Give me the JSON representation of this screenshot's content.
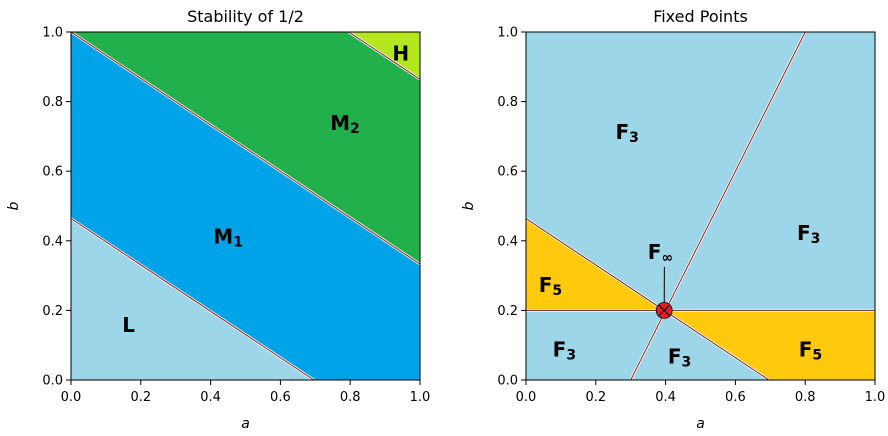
{
  "colors": {
    "L": "#9dd6e8",
    "M1": "#00a2e8",
    "M2": "#22b04c",
    "H": "#b5e61d",
    "F3": "#9dd6e8",
    "F5": "#ffc90e",
    "boundary": "#7a1f1f",
    "point": "#ed1c24"
  },
  "chart_data": [
    {
      "type": "heatmap",
      "title": "Stability of 1/2",
      "xlabel": "a",
      "ylabel": "b",
      "xlim": [
        0,
        1
      ],
      "ylim": [
        0,
        1
      ],
      "xticks": [
        "0.0",
        "0.2",
        "0.4",
        "0.6",
        "0.8",
        "1.0"
      ],
      "yticks": [
        "0.0",
        "0.2",
        "0.4",
        "0.6",
        "0.8",
        "1.0"
      ],
      "boundaries": [
        {
          "p1": [
            0,
            0.464
          ],
          "p2": [
            0.696,
            0
          ]
        },
        {
          "p1": [
            0,
            1.0
          ],
          "p2": [
            1.0,
            0.333
          ]
        },
        {
          "p1": [
            0.796,
            1.0
          ],
          "p2": [
            1.0,
            0.864
          ]
        }
      ],
      "regions": [
        {
          "name": "L",
          "base": "L",
          "sub": "",
          "color_key": "L",
          "polygon": [
            [
              0,
              0
            ],
            [
              0.696,
              0
            ],
            [
              0,
              0.464
            ]
          ],
          "label_at": [
            0.165,
            0.155
          ]
        },
        {
          "name": "M1",
          "base": "M",
          "sub": "1",
          "color_key": "M1",
          "polygon": [
            [
              0,
              0.464
            ],
            [
              0.696,
              0
            ],
            [
              1,
              0
            ],
            [
              1,
              0.333
            ],
            [
              0,
              1
            ]
          ],
          "label_at": [
            0.45,
            0.41
          ]
        },
        {
          "name": "M2",
          "base": "M",
          "sub": "2",
          "color_key": "M2",
          "polygon": [
            [
              0,
              1
            ],
            [
              1,
              0.333
            ],
            [
              1,
              0.864
            ],
            [
              0.796,
              1
            ]
          ],
          "label_at": [
            0.785,
            0.735
          ]
        },
        {
          "name": "H",
          "base": "H",
          "sub": "",
          "color_key": "H",
          "polygon": [
            [
              0.796,
              1
            ],
            [
              1,
              0.864
            ],
            [
              1,
              1
            ]
          ],
          "label_at": [
            0.945,
            0.935
          ]
        }
      ]
    },
    {
      "type": "heatmap",
      "title": "Fixed Points",
      "xlabel": "a",
      "ylabel": "b",
      "xlim": [
        0,
        1
      ],
      "ylim": [
        0,
        1
      ],
      "xticks": [
        "0.0",
        "0.2",
        "0.4",
        "0.6",
        "0.8",
        "1.0"
      ],
      "yticks": [
        "0.0",
        "0.2",
        "0.4",
        "0.6",
        "0.8",
        "1.0"
      ],
      "boundaries": [
        {
          "p1": [
            0,
            0.464
          ],
          "p2": [
            0.696,
            0
          ]
        },
        {
          "p1": [
            0,
            0.2
          ],
          "p2": [
            1.0,
            0.2
          ]
        },
        {
          "p1": [
            0.3,
            0
          ],
          "p2": [
            0.8,
            1.0
          ]
        }
      ],
      "regions": [
        {
          "name": "F3-a",
          "base": "F",
          "sub": "3",
          "color_key": "F3",
          "polygon": [
            [
              0,
              0
            ],
            [
              1,
              0
            ],
            [
              1,
              1
            ],
            [
              0,
              1
            ]
          ],
          "label_at": [
            0.29,
            0.71
          ]
        },
        {
          "name": "F3-b",
          "base": "F",
          "sub": "3",
          "color_key": "F3",
          "polygon": [],
          "label_at": [
            0.81,
            0.42
          ]
        },
        {
          "name": "F3-c",
          "base": "F",
          "sub": "3",
          "color_key": "F3",
          "polygon": [],
          "label_at": [
            0.11,
            0.085
          ]
        },
        {
          "name": "F3-d",
          "base": "F",
          "sub": "3",
          "color_key": "F3",
          "polygon": [],
          "label_at": [
            0.44,
            0.065
          ]
        },
        {
          "name": "F5-a",
          "base": "F",
          "sub": "5",
          "color_key": "F5",
          "polygon": [
            [
              0,
              0.464
            ],
            [
              0,
              0.2
            ],
            [
              0.396,
              0.2
            ]
          ],
          "label_at": [
            0.07,
            0.27
          ]
        },
        {
          "name": "F5-b",
          "base": "F",
          "sub": "5",
          "color_key": "F5",
          "polygon": [
            [
              0.396,
              0.2
            ],
            [
              1,
              0.2
            ],
            [
              1,
              0
            ],
            [
              0.696,
              0
            ]
          ],
          "label_at": [
            0.815,
            0.085
          ]
        }
      ],
      "annotations": [
        {
          "base": "F",
          "sub": "∞",
          "label_at": [
            0.385,
            0.365
          ],
          "pointer_to": [
            0.396,
            0.2
          ]
        }
      ],
      "points": [
        {
          "x": 0.396,
          "y": 0.2,
          "marker": "circle-x"
        }
      ]
    }
  ]
}
